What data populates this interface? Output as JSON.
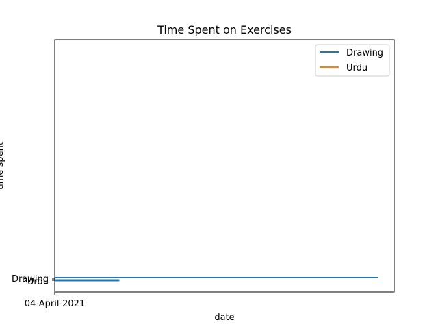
{
  "chart_data": {
    "type": "line",
    "title": "Time Spent on Exercises",
    "xlabel": "date",
    "ylabel": "time spent",
    "x_categories": [
      "04-April-2021"
    ],
    "y_categories": [
      "Drawing",
      "Urdu"
    ],
    "series": [
      {
        "name": "Drawing",
        "color": "#1f77b4",
        "x": [
          0,
          0.2
        ],
        "y": [
          0,
          0
        ]
      },
      {
        "name": "Urdu",
        "color": "#ff7f0e",
        "x": [
          0,
          1
        ],
        "y": [
          0,
          0
        ]
      }
    ],
    "legend": [
      {
        "label": "Drawing",
        "color": "#1f77b4"
      },
      {
        "label": "Urdu",
        "color": "#ff7f0e"
      }
    ],
    "legend_position": "upper right"
  }
}
